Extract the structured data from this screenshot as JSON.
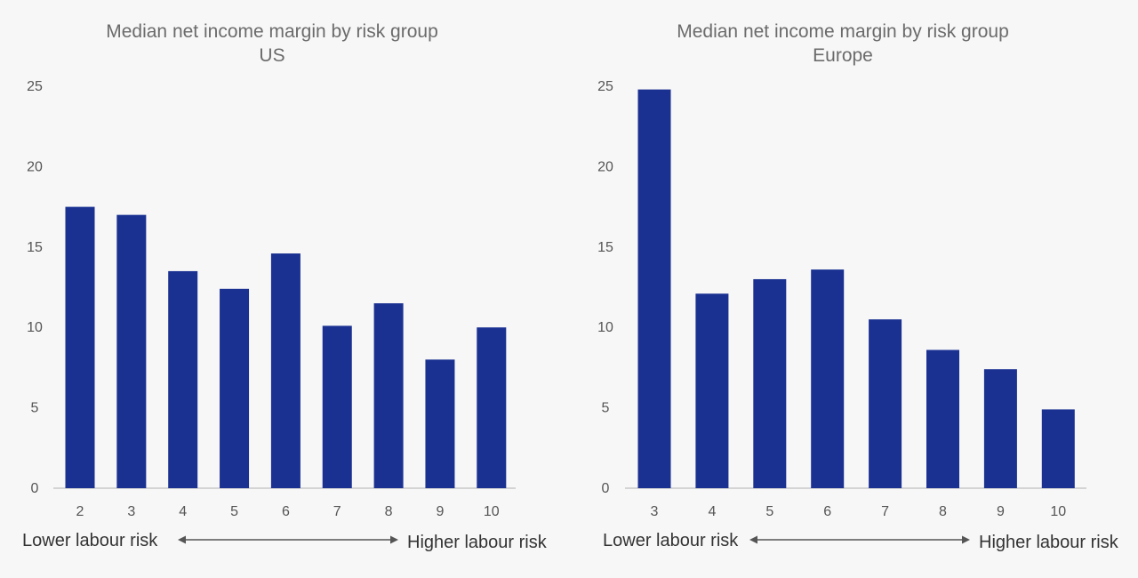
{
  "colors": {
    "bar": "#1a3192",
    "background": "#f7f7f7"
  },
  "chart_data": [
    {
      "type": "bar",
      "title": "Median net income margin by risk group",
      "subtitle": "US",
      "categories": [
        "2",
        "3",
        "4",
        "5",
        "6",
        "7",
        "8",
        "9",
        "10"
      ],
      "values": [
        17.5,
        17.0,
        13.5,
        12.4,
        14.6,
        10.1,
        11.5,
        8.0,
        10.0
      ],
      "yticks": [
        0,
        5,
        10,
        15,
        20,
        25
      ],
      "ylim": [
        0,
        25
      ],
      "left_annotation": "Lower labour risk",
      "right_annotation": "Higher labour risk"
    },
    {
      "type": "bar",
      "title": "Median net income margin by risk group",
      "subtitle": "Europe",
      "categories": [
        "3",
        "4",
        "5",
        "6",
        "7",
        "8",
        "9",
        "10"
      ],
      "values": [
        24.8,
        12.1,
        13.0,
        13.6,
        10.5,
        8.6,
        7.4,
        4.9
      ],
      "yticks": [
        0,
        5,
        10,
        15,
        20,
        25
      ],
      "ylim": [
        0,
        25
      ],
      "left_annotation": "Lower labour risk",
      "right_annotation": "Higher labour risk"
    }
  ]
}
